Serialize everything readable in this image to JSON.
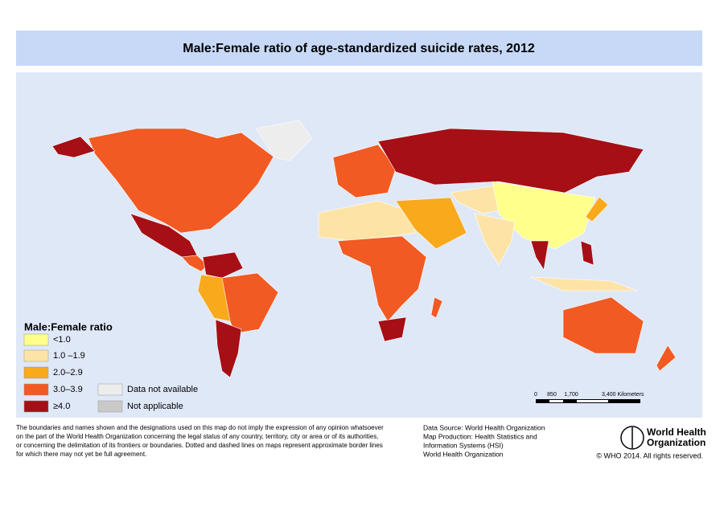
{
  "header": {
    "title": "Male:Female ratio of age-standardized suicide rates, 2012"
  },
  "legend": {
    "title": "Male:Female ratio",
    "items": [
      {
        "label": "<1.0",
        "color": "#ffff8c"
      },
      {
        "label": "1.0 –1.9",
        "color": "#fde4a6"
      },
      {
        "label": "2.0–2.9",
        "color": "#f8a91c"
      },
      {
        "label": "3.0–3.9",
        "color": "#f15a22"
      },
      {
        "label": "≥4.0",
        "color": "#a50f15"
      },
      {
        "label": "Data not available",
        "color": "#ededed"
      },
      {
        "label": "Not applicable",
        "color": "#c9c9c9"
      }
    ]
  },
  "scale_bar": {
    "labels": [
      "0",
      "850",
      "1,700",
      "3,400 Kilometers"
    ]
  },
  "footer": {
    "disclaimer": [
      "The boundaries and names shown and the designations used on this map do not imply the expression of any opinion whatsoever",
      "on the part of the World Health Organization concerning the legal status of any country, territory, city or area or of its authorities,",
      "or concerning the delimitation of its frontiers or boundaries. Dotted and dashed lines on maps represent approximate border lines",
      "for which there may not yet be full agreement."
    ],
    "source": [
      "Data Source: World Health Organization",
      "Map Production: Health Statistics and",
      "Information Systems (HSI)",
      "World Health Organization"
    ],
    "logo": [
      "World Health",
      "Organization"
    ],
    "copyright": "© WHO 2014. All rights reserved."
  }
}
